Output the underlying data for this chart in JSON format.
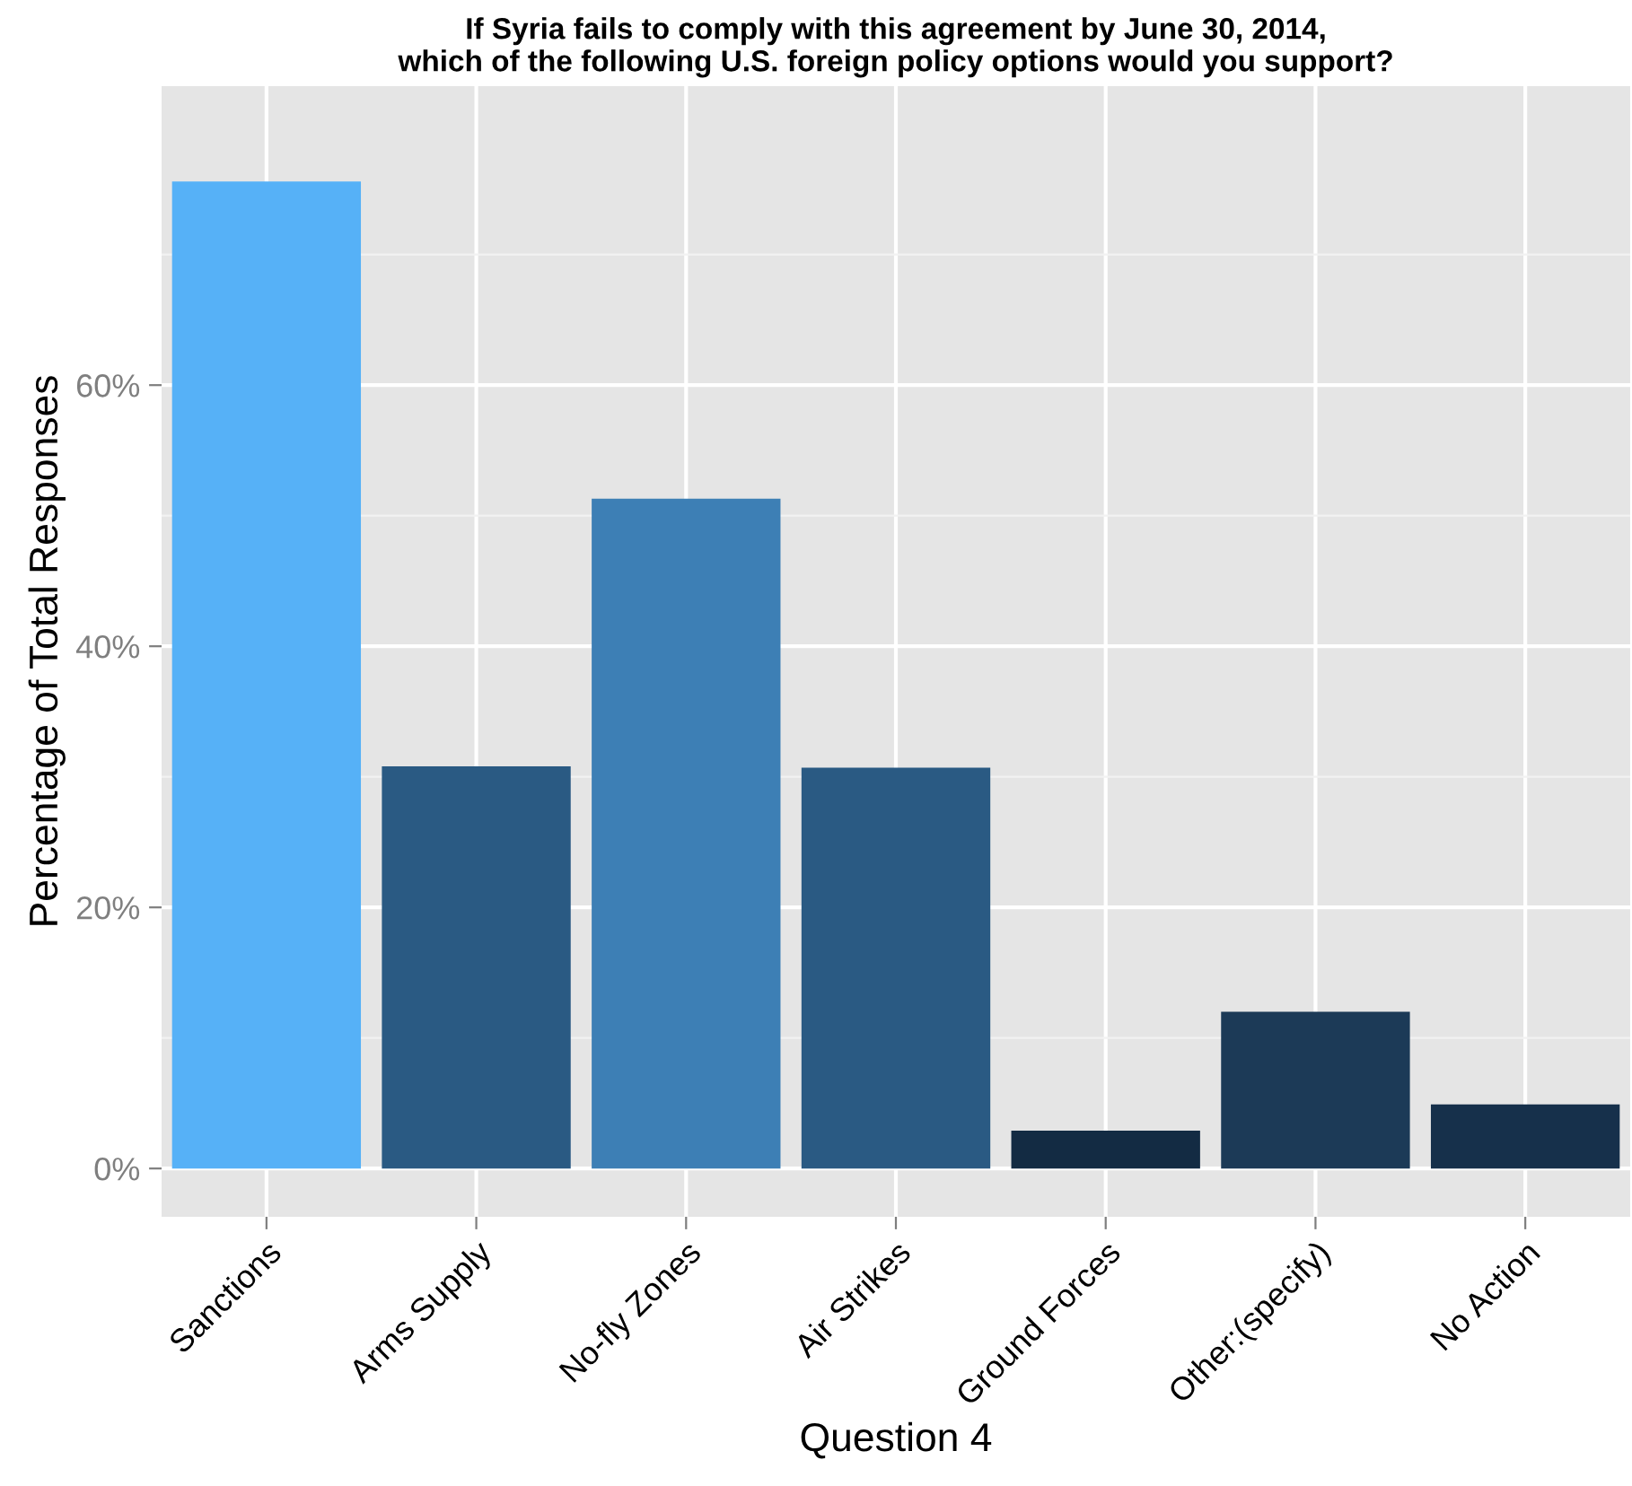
{
  "chart_data": {
    "type": "bar",
    "title": "If Syria fails to comply with this agreement by June 30, 2014,\nwhich of the following U.S. foreign policy options would you support?",
    "xlabel": "Question 4",
    "ylabel": "Percentage of Total Responses",
    "categories": [
      "Sanctions",
      "Arms Supply",
      "No-fly Zones",
      "Air Strikes",
      "Ground Forces",
      "Other:(specify)",
      "No Action"
    ],
    "values": [
      75.6,
      30.8,
      51.3,
      30.7,
      2.9,
      12.0,
      4.9
    ],
    "colors": [
      "#56b1f7",
      "#2a5a83",
      "#3d7fb5",
      "#2a5a83",
      "#132b43",
      "#1c3a57",
      "#16304b"
    ],
    "ylim": [
      -3.7,
      82.9
    ],
    "yticks": [
      {
        "value": 0,
        "label": "0%"
      },
      {
        "value": 20,
        "label": "20%"
      },
      {
        "value": 40,
        "label": "40%"
      },
      {
        "value": 60,
        "label": "60%"
      }
    ],
    "grid": true
  }
}
